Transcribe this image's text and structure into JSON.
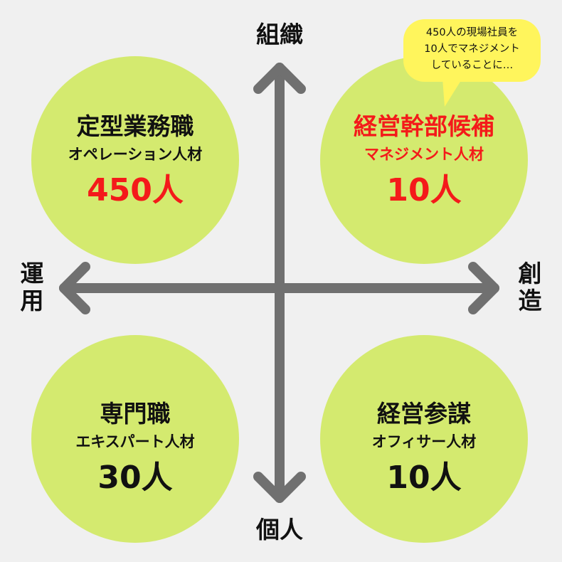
{
  "axes": {
    "top": "組織",
    "bottom": "個人",
    "left": "運用",
    "right": "創造"
  },
  "quadrants": [
    {
      "title": "定型業務職",
      "subtitle": "オペレーション人材",
      "count": "450人"
    },
    {
      "title": "経営幹部候補",
      "subtitle": "マネジメント人材",
      "count": "10人"
    },
    {
      "title": "専門職",
      "subtitle": "エキスパート人材",
      "count": "30人"
    },
    {
      "title": "経営参謀",
      "subtitle": "オフィサー人材",
      "count": "10人"
    }
  ],
  "callout": {
    "lines": [
      "450人の現場社員を",
      "10人でマネジメント",
      "していることに…"
    ]
  },
  "colors": {
    "background": "#f0f0f0",
    "circle": "#d4ea6f",
    "callout": "#fff55c",
    "arrow": "#707070",
    "highlight": "#f41a1a"
  }
}
